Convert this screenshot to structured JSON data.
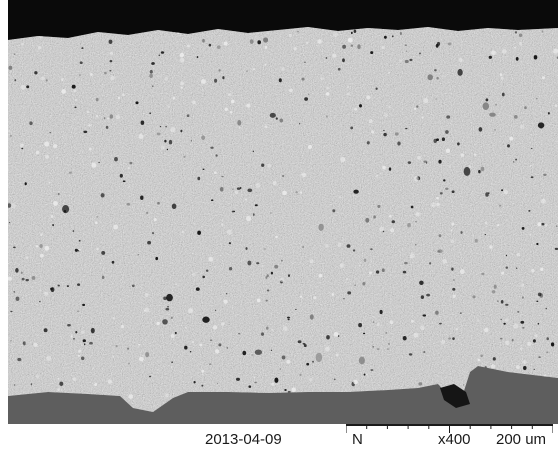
{
  "micrograph": {
    "colors": {
      "background_top": "#0a0a0a",
      "sample_base": "#c9c9c9",
      "sample_light": "#ececec",
      "sample_dark": "#7a7a7a",
      "pore": "#151515",
      "substrate": "#5e5e5e"
    }
  },
  "info_bar": {
    "date": "2013-04-09",
    "mode": "N",
    "magnification": "x400",
    "scale": "200 um"
  }
}
